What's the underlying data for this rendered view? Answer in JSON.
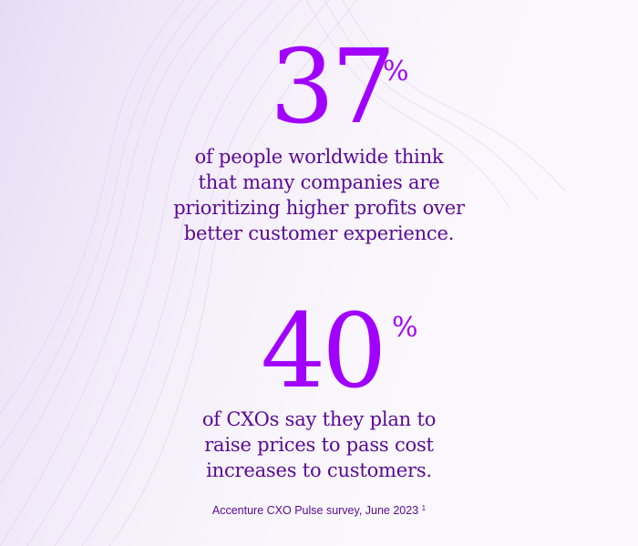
{
  "stat1": {
    "number": "37",
    "percent": "%",
    "lines": [
      "of people worldwide think",
      "that many companies are",
      "prioritizing higher profits over",
      "better customer experience."
    ]
  },
  "stat2": {
    "number": "40",
    "percent": "%",
    "lines": [
      "of CXOs say they plan to",
      "raise prices to pass cost",
      "increases to customers."
    ]
  },
  "source": {
    "text": "Accenture CXO Pulse survey, June 2023",
    "footnote": "1"
  },
  "colors": {
    "accent": "#a100ff",
    "text": "#5a0796",
    "background": "#fbf9fd"
  }
}
